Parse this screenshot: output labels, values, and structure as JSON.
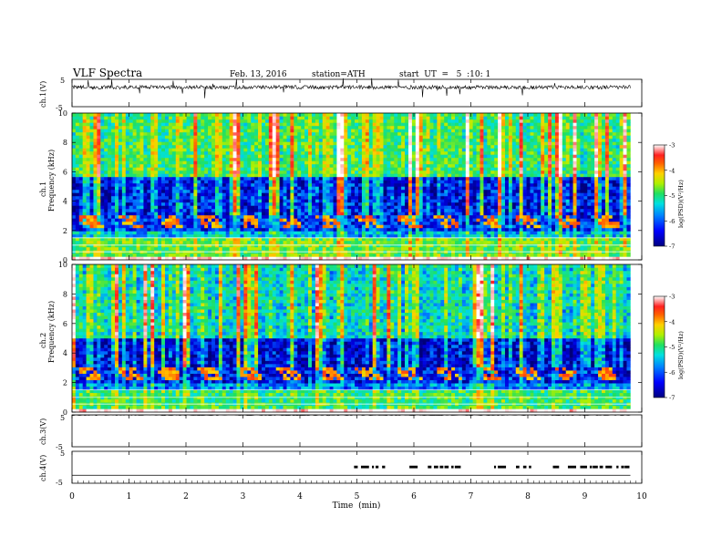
{
  "header": {
    "title": "VLF  Spectra",
    "date": "Feb. 13, 2016",
    "station": "station=ATH",
    "start": "start  UT  =   5  :10: 1"
  },
  "colors": {
    "axis": "#000000",
    "background": "#ffffff",
    "colormap": [
      "#00007a",
      "#0000e0",
      "#0070ff",
      "#00e0e0",
      "#20e060",
      "#b0f000",
      "#ffd000",
      "#ff7000",
      "#ff2020",
      "#ffb0b0",
      "#ffffff"
    ]
  },
  "chart_data": [
    {
      "type": "line",
      "panel": "ch1-waveform",
      "ylabel": "ch.1(V)",
      "yticks": [
        "5",
        "-5"
      ],
      "ylim": [
        -5,
        5
      ],
      "x_range_min": [
        0,
        9.8
      ],
      "description_values": "noisy waveform around offset",
      "mean_level_V": 2.1
    },
    {
      "type": "heatmap",
      "panel": "ch1-spectrogram",
      "ylabel": "ch.1\nFrequency  (kHz)",
      "ylabel_line1": "ch.1",
      "ylabel_line2": "Frequency  (kHz)",
      "yticks": [
        "0",
        "2",
        "4",
        "6",
        "8",
        "10"
      ],
      "ylim": [
        0,
        10
      ],
      "x_range_min": [
        0,
        9.8
      ],
      "colorbar": {
        "label": "log(PSD)(V²/Hz)",
        "ticks": [
          "-3",
          "-4",
          "-5",
          "-6",
          "-7"
        ],
        "range": [
          -7,
          -3
        ]
      },
      "bands_kHz_logPSD": [
        {
          "from": 0,
          "to": 0.3,
          "level": -3.2
        },
        {
          "from": 0.3,
          "to": 1.5,
          "level": -5.3
        },
        {
          "from": 1.5,
          "to": 2.0,
          "level": -6.0
        },
        {
          "from": 2.0,
          "to": 3.0,
          "level": -6.5
        },
        {
          "from": 3.0,
          "to": 5.6,
          "level": -6.7
        },
        {
          "from": 5.6,
          "to": 10,
          "level": -5.6
        }
      ],
      "chorus_band_kHz": [
        2.2,
        3.0
      ],
      "chorus_level": -4.3
    },
    {
      "type": "heatmap",
      "panel": "ch2-spectrogram",
      "ylabel_line1": "ch.2",
      "ylabel_line2": "Frequency  (kHz)",
      "yticks": [
        "0",
        "2",
        "4",
        "6",
        "8",
        "10"
      ],
      "ylim": [
        0,
        10
      ],
      "x_range_min": [
        0,
        9.8
      ],
      "colorbar": {
        "label": "log(PSD)(V²/Hz)",
        "ticks": [
          "-3",
          "-4",
          "-5",
          "-6",
          "-7"
        ],
        "range": [
          -7,
          -3
        ]
      },
      "bands_kHz_logPSD": [
        {
          "from": 0,
          "to": 0.3,
          "level": -3.2
        },
        {
          "from": 0.3,
          "to": 1.5,
          "level": -5.5
        },
        {
          "from": 1.5,
          "to": 2.0,
          "level": -6.2
        },
        {
          "from": 2.0,
          "to": 3.0,
          "level": -6.6
        },
        {
          "from": 3.0,
          "to": 5.0,
          "level": -6.8
        },
        {
          "from": 5.0,
          "to": 10,
          "level": -5.9
        }
      ],
      "chorus_band_kHz": [
        2.2,
        3.0
      ],
      "chorus_level": -4.3
    },
    {
      "type": "line",
      "panel": "ch3-waveform",
      "ylabel": "ch.3(V)",
      "yticks": [
        "5",
        "-5"
      ],
      "ylim": [
        -5,
        5
      ],
      "x_range_min": [
        0,
        9.8
      ],
      "mean_level_V": 5
    },
    {
      "type": "line",
      "panel": "ch4-waveform",
      "ylabel": "ch.4(V)",
      "yticks": [
        "5",
        "-5"
      ],
      "ylim": [
        -5,
        5
      ],
      "x_range_min": [
        0,
        9.8
      ],
      "baseline_V": -2.5,
      "pulses": {
        "from_min": 4.95,
        "to_min": 9.7,
        "level_V": 0.5
      }
    }
  ],
  "xaxis": {
    "label": "Time  (min)",
    "ticks": [
      "0",
      "1",
      "2",
      "3",
      "4",
      "5",
      "6",
      "7",
      "8",
      "9",
      "10"
    ],
    "range": [
      0,
      10
    ]
  }
}
